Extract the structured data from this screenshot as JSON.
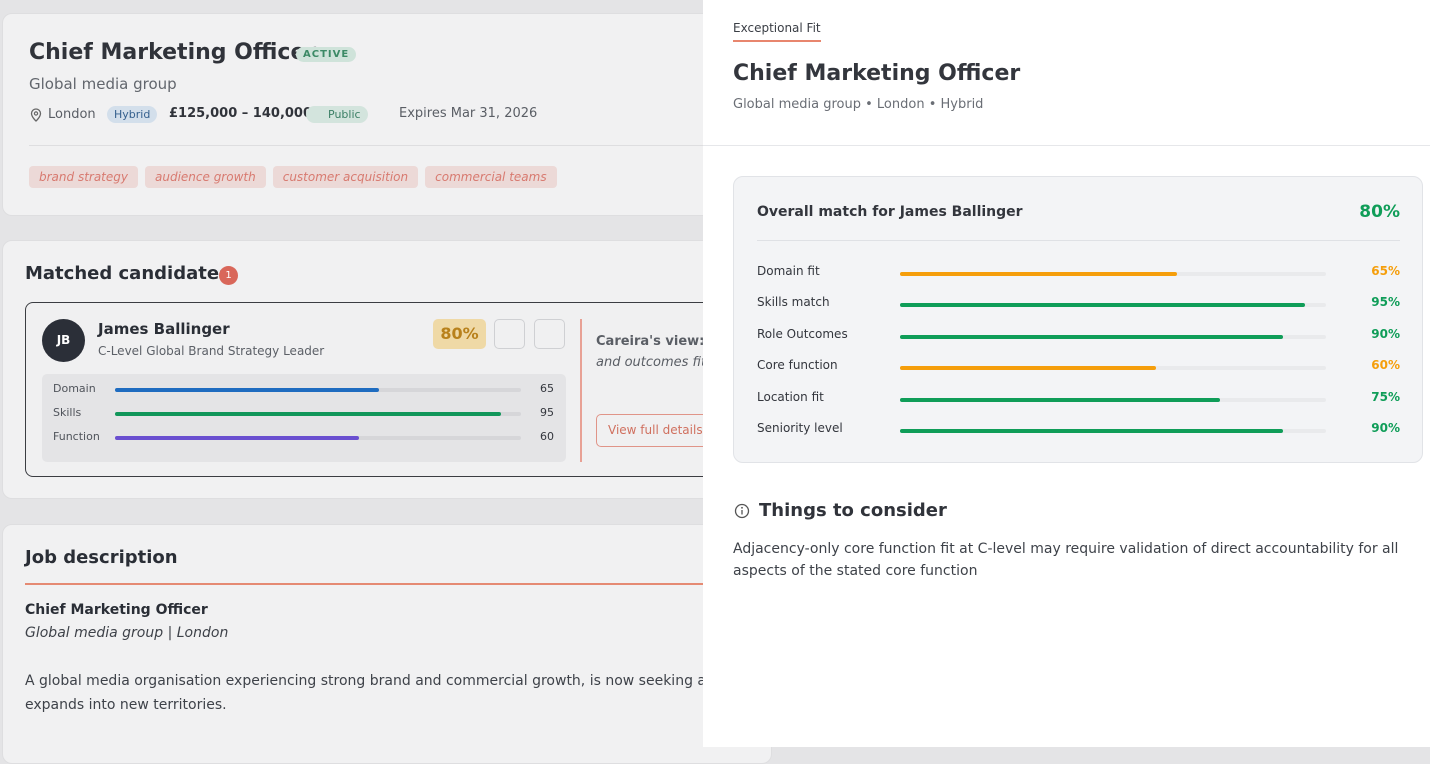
{
  "job": {
    "title": "Chief Marketing Officer",
    "status": "ACTIVE",
    "company": "Global media group",
    "location": "London",
    "work_mode": "Hybrid",
    "salary": "£125,000 – 140,000",
    "visibility": "Public",
    "expires": "Expires Mar 31, 2026",
    "tags": [
      "brand strategy",
      "audience growth",
      "customer acquisition",
      "commercial teams"
    ]
  },
  "matches": {
    "title": "Matched candidates",
    "count": 1,
    "candidate": {
      "initials": "JB",
      "name": "James Ballinger",
      "headline": "C-Level Global Brand Strategy Leader",
      "score": {
        "value": 80,
        "label": "80%"
      },
      "scores": [
        {
          "label": "Domain",
          "value": 65,
          "color": "#1f6cc0"
        },
        {
          "label": "Skills",
          "value": 95,
          "color": "#11965a"
        },
        {
          "label": "Function",
          "value": 60,
          "color": "#6a4fd0"
        }
      ],
      "view_label": "Careira's view:",
      "view_text_lines": [
        "C",
        "and outcomes fit"
      ],
      "button": "View full details"
    }
  },
  "description": {
    "title": "Job description",
    "heading": "Chief Marketing Officer",
    "subheading": "Global media group | London",
    "paragraph_lines": [
      "A global media organisation experiencing strong brand and commercial growth, is now seeking a dyna",
      "expands into new territories."
    ]
  },
  "panel": {
    "tab": "Exceptional Fit",
    "title": "Chief Marketing Officer",
    "subtitle": "Global media group • London • Hybrid",
    "match": {
      "title": "Overall match for James Ballinger",
      "overall": {
        "value": 80,
        "label": "80%"
      },
      "metrics": [
        {
          "name": "Domain fit",
          "value": 65,
          "label": "65%",
          "color": "#f59e0b"
        },
        {
          "name": "Skills match",
          "value": 95,
          "label": "95%",
          "color": "#0f9d58"
        },
        {
          "name": "Role Outcomes",
          "value": 90,
          "label": "90%",
          "color": "#0f9d58"
        },
        {
          "name": "Core function",
          "value": 60,
          "label": "60%",
          "color": "#f59e0b"
        },
        {
          "name": "Location fit",
          "value": 75,
          "label": "75%",
          "color": "#0f9d58"
        },
        {
          "name": "Seniority level",
          "value": 90,
          "label": "90%",
          "color": "#0f9d58"
        }
      ]
    },
    "consider": {
      "title": "Things to consider",
      "text": "Adjacency-only core function fit at C-level may require validation of direct accountability for all aspects of the stated core function"
    }
  }
}
